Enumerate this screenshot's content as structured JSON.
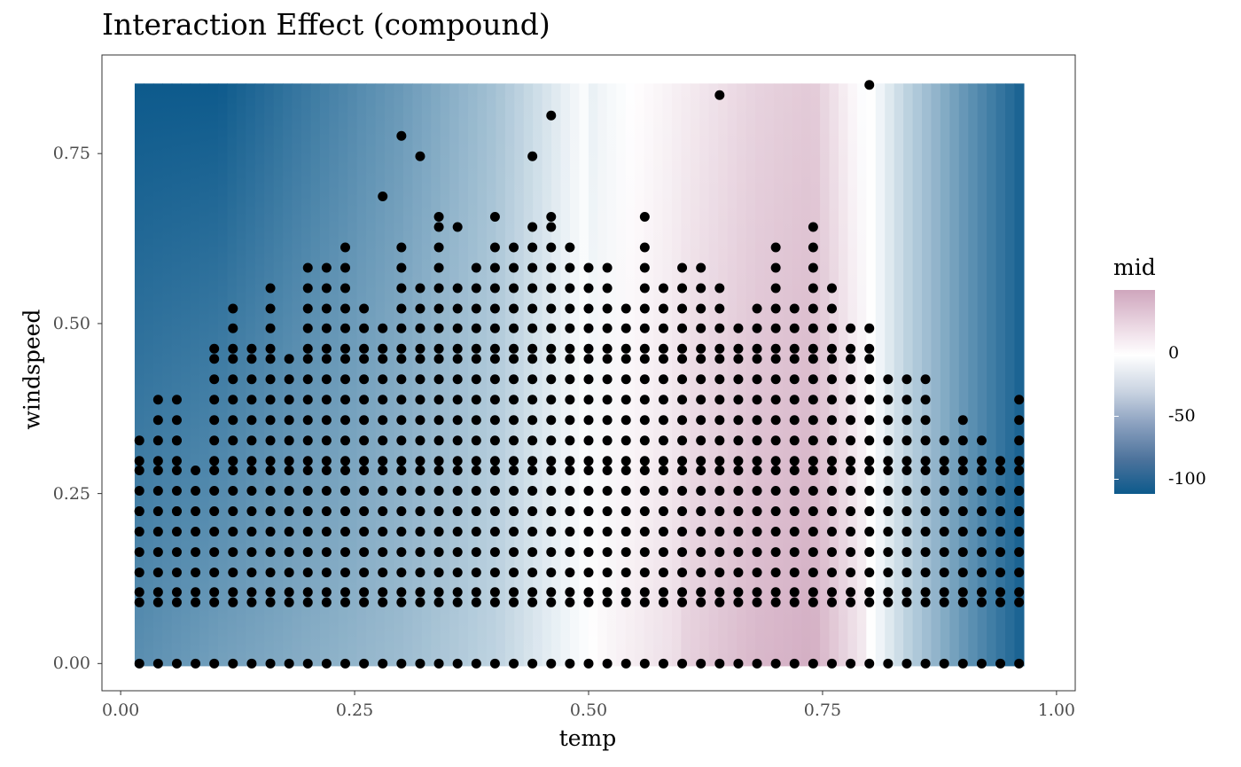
{
  "chart_data": {
    "type": "heatmap",
    "title": "Interaction Effect (compound)",
    "xlabel": "temp",
    "ylabel": "windspeed",
    "xlim": [
      -0.02,
      1.02
    ],
    "ylim": [
      -0.04,
      0.895
    ],
    "x_ticks": [
      "0.00",
      "0.25",
      "0.50",
      "0.75",
      "1.00"
    ],
    "y_ticks": [
      "0.00",
      "0.25",
      "0.50",
      "0.75"
    ],
    "heatmap_extent": {
      "x": [
        0.015,
        0.965
      ],
      "y": [
        -0.004,
        0.853
      ]
    },
    "heatmap_profile": [
      {
        "temp": 0.02,
        "mid": -100
      },
      {
        "temp": 0.1,
        "mid": -85
      },
      {
        "temp": 0.2,
        "mid": -70
      },
      {
        "temp": 0.3,
        "mid": -55
      },
      {
        "temp": 0.4,
        "mid": -35
      },
      {
        "temp": 0.47,
        "mid": -10
      },
      {
        "temp": 0.52,
        "mid": 5
      },
      {
        "temp": 0.6,
        "mid": 20
      },
      {
        "temp": 0.68,
        "mid": 35
      },
      {
        "temp": 0.74,
        "mid": 40
      },
      {
        "temp": 0.79,
        "mid": 10
      },
      {
        "temp": 0.84,
        "mid": -30
      },
      {
        "temp": 0.9,
        "mid": -70
      },
      {
        "temp": 0.96,
        "mid": -105
      }
    ],
    "legend": {
      "title": "mid",
      "labels": [
        "0",
        "-50",
        "-100"
      ],
      "values": [
        0,
        -50,
        -100
      ],
      "range": [
        -112,
        50
      ],
      "colors": {
        "high": "#cfa6bd",
        "mid": "#ffffff",
        "low": "#0d5a8c"
      }
    },
    "points": {
      "color": "#000000",
      "x": [
        0.02,
        0.04,
        0.06,
        0.08,
        0.1,
        0.12,
        0.14,
        0.16,
        0.18,
        0.2,
        0.22,
        0.24,
        0.26,
        0.28,
        0.3,
        0.32,
        0.34,
        0.36,
        0.38,
        0.4,
        0.42,
        0.44,
        0.46,
        0.48,
        0.5,
        0.52,
        0.54,
        0.56,
        0.58,
        0.6,
        0.62,
        0.64,
        0.66,
        0.68,
        0.7,
        0.72,
        0.74,
        0.76,
        0.78,
        0.8,
        0.82,
        0.84,
        0.86,
        0.88,
        0.9,
        0.92,
        0.94,
        0.96
      ],
      "y_values": [
        0.0,
        0.09,
        0.105,
        0.134,
        0.164,
        0.194,
        0.224,
        0.254,
        0.284,
        0.298,
        0.328,
        0.358,
        0.388,
        0.418,
        0.448,
        0.463,
        0.493,
        0.522,
        0.552,
        0.582,
        0.612,
        0.642
      ],
      "y_max": [
        0.328,
        0.388,
        0.388,
        0.284,
        0.463,
        0.522,
        0.463,
        0.552,
        0.448,
        0.582,
        0.582,
        0.612,
        0.522,
        0.493,
        0.612,
        0.552,
        0.642,
        0.552,
        0.582,
        0.612,
        0.612,
        0.642,
        0.642,
        0.612,
        0.582,
        0.582,
        0.522,
        0.612,
        0.552,
        0.582,
        0.582,
        0.552,
        0.493,
        0.522,
        0.612,
        0.522,
        0.642,
        0.552,
        0.493,
        0.493,
        0.418,
        0.418,
        0.418,
        0.328,
        0.358,
        0.328,
        0.298,
        0.388
      ],
      "extra": [
        [
          0.28,
          0.687
        ],
        [
          0.3,
          0.776
        ],
        [
          0.32,
          0.746
        ],
        [
          0.34,
          0.657
        ],
        [
          0.36,
          0.642
        ],
        [
          0.4,
          0.657
        ],
        [
          0.44,
          0.746
        ],
        [
          0.46,
          0.806
        ],
        [
          0.46,
          0.657
        ],
        [
          0.56,
          0.657
        ],
        [
          0.64,
          0.836
        ],
        [
          0.8,
          0.851
        ],
        [
          0.02,
          0.224
        ],
        [
          0.06,
          0.224
        ],
        [
          0.06,
          0.328
        ],
        [
          0.96,
          0.224
        ],
        [
          0.96,
          0.254
        ]
      ]
    }
  }
}
